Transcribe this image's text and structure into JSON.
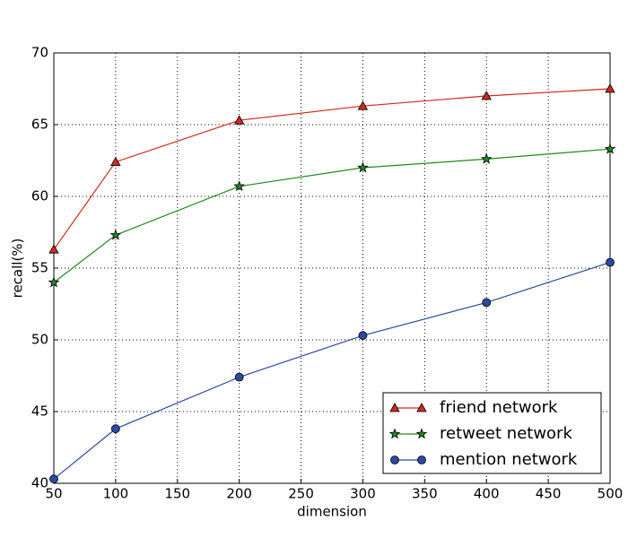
{
  "chart_data": {
    "type": "line",
    "xlabel": "dimension",
    "ylabel": "recall(%)",
    "x": [
      50,
      100,
      200,
      300,
      400,
      500
    ],
    "series": [
      {
        "name": "friend network",
        "color": "#d0291e",
        "marker": "triangle",
        "values": [
          56.3,
          62.4,
          65.3,
          66.3,
          67.0,
          67.5
        ]
      },
      {
        "name": "retweet network",
        "color": "#1f8a1f",
        "marker": "star",
        "values": [
          54.0,
          57.3,
          60.7,
          62.0,
          62.6,
          63.3
        ]
      },
      {
        "name": "mention network",
        "color": "#2b4aa0",
        "marker": "circle",
        "values": [
          40.3,
          43.8,
          47.4,
          50.3,
          52.6,
          55.4
        ]
      }
    ],
    "xlim": [
      50,
      500
    ],
    "xticks": [
      50,
      100,
      150,
      200,
      250,
      300,
      350,
      400,
      450,
      500
    ],
    "ylim": [
      40,
      70
    ],
    "yticks": [
      40,
      45,
      50,
      55,
      60,
      65,
      70
    ],
    "grid": true,
    "legend": "lower right"
  }
}
